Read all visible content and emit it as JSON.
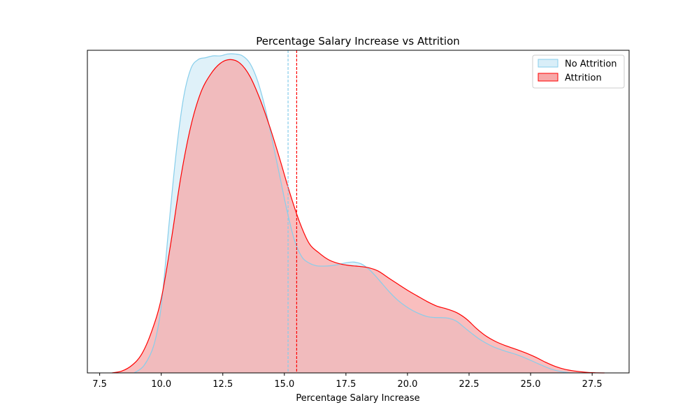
{
  "chart_data": {
    "type": "area",
    "title": "Percentage Salary Increase vs Attrition",
    "xlabel": "Percentage Salary Increase",
    "ylabel": "",
    "xlim": [
      7.0,
      29.0
    ],
    "ylim": [
      0,
      0.174
    ],
    "xticks": [
      7.5,
      10.0,
      12.5,
      15.0,
      17.5,
      20.0,
      22.5,
      25.0,
      27.5
    ],
    "xtick_labels": [
      "7.5",
      "10.0",
      "12.5",
      "15.0",
      "17.5",
      "20.0",
      "22.5",
      "25.0",
      "27.5"
    ],
    "y_axis_visible": false,
    "grid": false,
    "legend_position": "top-right",
    "series": [
      {
        "name": "No Attrition",
        "color": "#87ceeb",
        "fill": "#d9eef8",
        "mean": 15.15,
        "x": [
          8.9,
          9.3,
          9.7,
          10.0,
          10.3,
          10.6,
          10.9,
          11.2,
          11.5,
          11.8,
          12.1,
          12.4,
          12.7,
          13.0,
          13.3,
          13.6,
          13.9,
          14.2,
          14.5,
          14.8,
          15.1,
          15.4,
          15.7,
          16.0,
          16.3,
          16.6,
          16.9,
          17.2,
          17.5,
          17.8,
          18.1,
          18.4,
          18.7,
          19.0,
          19.3,
          19.6,
          19.9,
          20.2,
          20.5,
          20.8,
          21.1,
          21.4,
          21.7,
          22.0,
          22.3,
          22.6,
          22.9,
          23.2,
          23.5,
          23.8,
          24.1,
          24.4,
          24.7,
          25.0,
          25.3,
          25.6,
          25.9,
          26.2,
          26.6
        ],
        "y": [
          0.0,
          0.004,
          0.015,
          0.036,
          0.078,
          0.118,
          0.148,
          0.164,
          0.169,
          0.17,
          0.171,
          0.171,
          0.172,
          0.172,
          0.171,
          0.167,
          0.158,
          0.144,
          0.126,
          0.107,
          0.088,
          0.072,
          0.0628,
          0.0593,
          0.0578,
          0.0576,
          0.0578,
          0.0585,
          0.0594,
          0.0598,
          0.0589,
          0.0563,
          0.0523,
          0.0477,
          0.0432,
          0.0393,
          0.0362,
          0.0337,
          0.0318,
          0.0304,
          0.0299,
          0.0298,
          0.0294,
          0.0278,
          0.0246,
          0.0214,
          0.0184,
          0.016,
          0.014,
          0.0125,
          0.0112,
          0.01,
          0.0085,
          0.0068,
          0.005,
          0.0033,
          0.0018,
          0.0008,
          0.0
        ]
      },
      {
        "name": "Attrition",
        "color": "#ff0000",
        "fill": "#f7a8a8",
        "mean": 15.5,
        "x": [
          8.0,
          8.4,
          8.8,
          9.2,
          9.6,
          10.0,
          10.4,
          10.8,
          11.2,
          11.6,
          12.0,
          12.4,
          12.8,
          13.2,
          13.6,
          14.0,
          14.4,
          14.8,
          15.2,
          15.6,
          16.0,
          16.4,
          16.8,
          17.2,
          17.6,
          18.0,
          18.4,
          18.8,
          19.2,
          19.6,
          20.0,
          20.4,
          20.8,
          21.2,
          21.6,
          22.0,
          22.4,
          22.8,
          23.2,
          23.6,
          24.0,
          24.4,
          24.8,
          25.2,
          25.6,
          26.0,
          26.4,
          26.8,
          27.2,
          27.6,
          28.0
        ],
        "y": [
          0.0,
          0.001,
          0.004,
          0.01,
          0.022,
          0.04,
          0.071,
          0.106,
          0.133,
          0.151,
          0.161,
          0.167,
          0.169,
          0.167,
          0.16,
          0.148,
          0.133,
          0.116,
          0.098,
          0.082,
          0.07,
          0.0648,
          0.061,
          0.059,
          0.058,
          0.0575,
          0.0568,
          0.055,
          0.0515,
          0.048,
          0.0446,
          0.0415,
          0.0385,
          0.036,
          0.0345,
          0.0325,
          0.029,
          0.024,
          0.0198,
          0.0168,
          0.0146,
          0.0128,
          0.0108,
          0.0085,
          0.0058,
          0.0035,
          0.0019,
          0.001,
          0.0004,
          0.0001,
          0.0
        ]
      }
    ]
  }
}
